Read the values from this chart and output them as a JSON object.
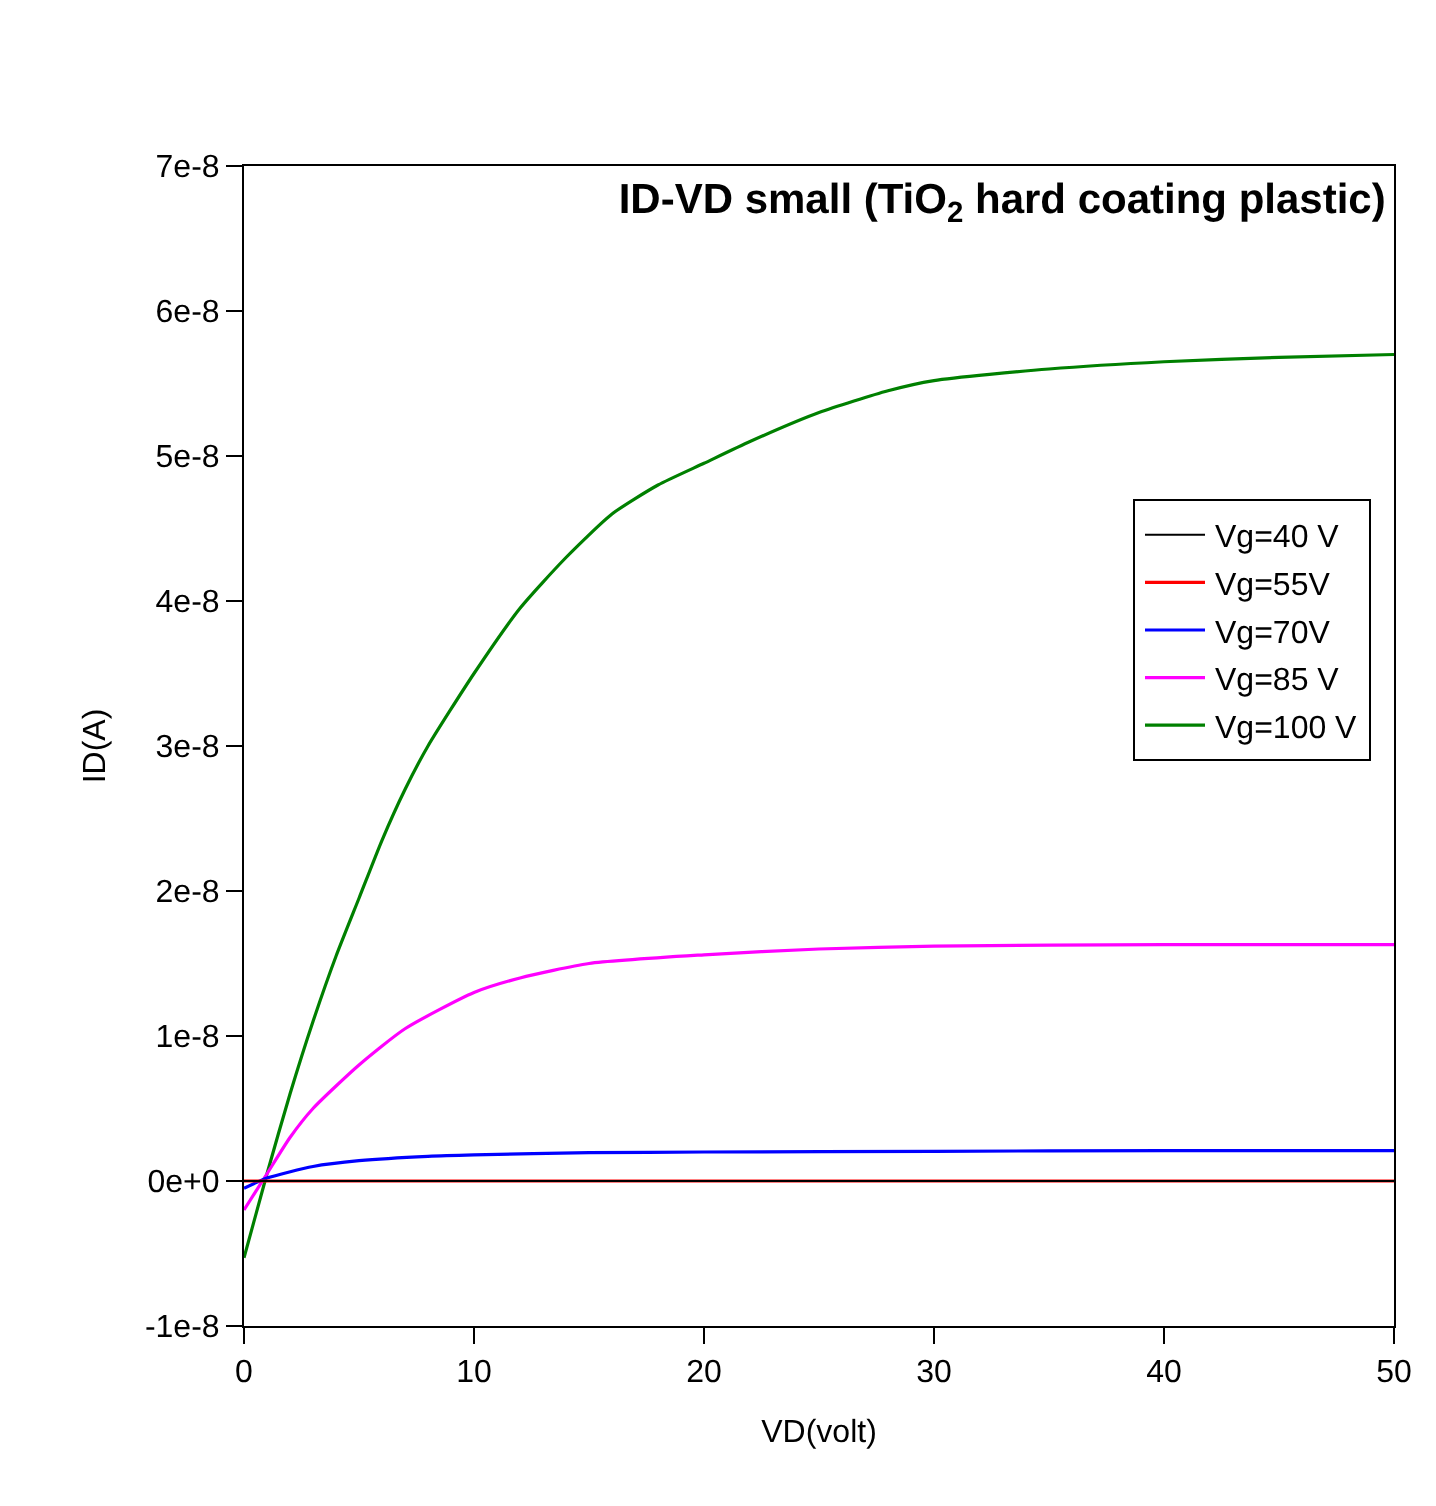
{
  "chart_data": {
    "type": "line",
    "title": "ID-VD small (TiO$_{2}$ hard coating plastic)",
    "xlabel": "VD(volt)",
    "ylabel": "ID(A)",
    "xlim": [
      0,
      50
    ],
    "xticks": [
      0,
      10,
      20,
      30,
      40,
      50
    ],
    "ylim": [
      -1e-08,
      7e-08
    ],
    "yticks": [
      {
        "value": -1e-08,
        "label": "-1e-8"
      },
      {
        "value": 0,
        "label": "0e+0"
      },
      {
        "value": 1e-08,
        "label": "1e-8"
      },
      {
        "value": 2e-08,
        "label": "2e-8"
      },
      {
        "value": 3e-08,
        "label": "3e-8"
      },
      {
        "value": 4e-08,
        "label": "4e-8"
      },
      {
        "value": 5e-08,
        "label": "5e-8"
      },
      {
        "value": 6e-08,
        "label": "6e-8"
      },
      {
        "value": 7e-08,
        "label": "7e-8"
      }
    ],
    "legend": "right",
    "marker": "none",
    "line_style": "solid",
    "series": [
      {
        "name": "Vg=40 V",
        "color": "#000000",
        "x": [
          0,
          10,
          20,
          30,
          40,
          50
        ],
        "values": [
          0,
          0,
          0,
          0,
          0,
          0
        ]
      },
      {
        "name": "Vg=55V",
        "color": "#ff0000",
        "x": [
          0,
          10,
          20,
          30,
          40,
          50
        ],
        "values": [
          0,
          0,
          0,
          0,
          0,
          0
        ]
      },
      {
        "name": "Vg=70V",
        "color": "#0000ff",
        "x": [
          0,
          1,
          3,
          5,
          8,
          10,
          15,
          20,
          30,
          40,
          50
        ],
        "values": [
          -5e-10,
          2e-10,
          1e-09,
          1.4e-09,
          1.7e-09,
          1.8e-09,
          1.95e-09,
          2e-09,
          2.05e-09,
          2.1e-09,
          2.1e-09
        ]
      },
      {
        "name": "Vg=85 V",
        "color": "#ff00ff",
        "x": [
          0,
          1,
          2,
          3,
          5,
          7,
          10,
          12,
          15,
          20,
          25,
          30,
          40,
          50
        ],
        "values": [
          -2e-09,
          5e-10,
          3e-09,
          5e-09,
          8e-09,
          1.05e-08,
          1.3e-08,
          1.4e-08,
          1.5e-08,
          1.56e-08,
          1.6e-08,
          1.62e-08,
          1.63e-08,
          1.63e-08
        ]
      },
      {
        "name": "Vg=100 V",
        "color": "#008000",
        "x": [
          0,
          1,
          2,
          3,
          4,
          5,
          6,
          7,
          8,
          10,
          12,
          14,
          16,
          18,
          20,
          22,
          25,
          28,
          30,
          35,
          40,
          45,
          50
        ],
        "values": [
          -5.3e-09,
          5e-10,
          6e-09,
          1.1e-08,
          1.55e-08,
          1.95e-08,
          2.35e-08,
          2.7e-08,
          3e-08,
          3.5e-08,
          3.95e-08,
          4.3e-08,
          4.6e-08,
          4.8e-08,
          4.95e-08,
          5.1e-08,
          5.3e-08,
          5.45e-08,
          5.52e-08,
          5.6e-08,
          5.65e-08,
          5.68e-08,
          5.7e-08
        ]
      }
    ]
  }
}
